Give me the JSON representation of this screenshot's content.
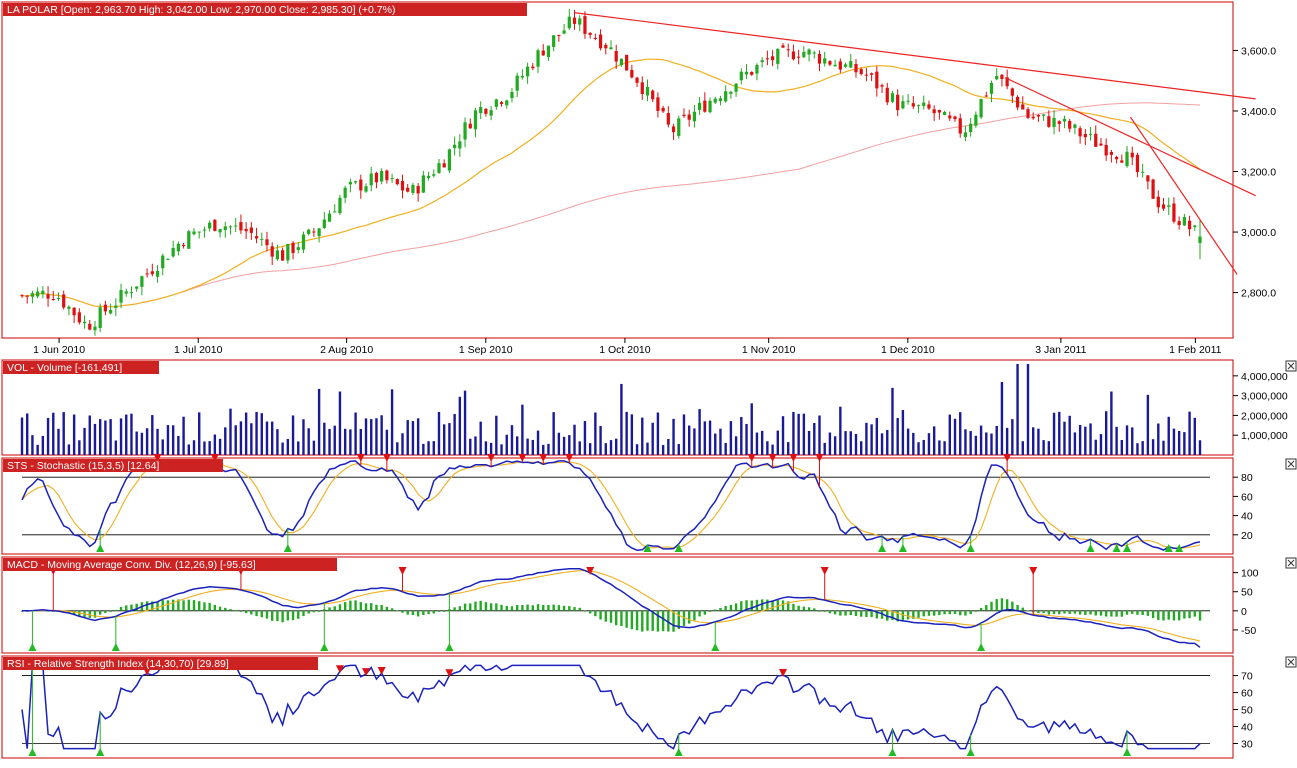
{
  "colors": {
    "frame": "#cc0000",
    "label_bg": "#cc2222",
    "up": "#22aa22",
    "down": "#dd1111",
    "ma_short": "#f0b020",
    "ma_long": "#f2a0a0",
    "trend": "#ee2222",
    "volume": "#1a1a99",
    "indicator": "#1a22bb",
    "signal": "#f0b020",
    "level_line": "#000000",
    "buy_marker": "#22bb22",
    "sell_marker": "#dd1111"
  },
  "price": {
    "label": "LA POLAR [Open: 2,963.70  High: 3,042.00  Low: 2,970.00  Close: 2,985.30] (+0.7%)",
    "y_ticks": [
      "3,600.0",
      "3,400.0",
      "3,200.0",
      "3,000.0",
      "2,800.0"
    ],
    "x_ticks": [
      "1 Jun 2010",
      "1 Jul 2010",
      "2 Aug 2010",
      "1 Sep 2010",
      "1 Oct 2010",
      "1 Nov 2010",
      "1 Dec 2010",
      "3 Jan 2011",
      "1 Feb 2011"
    ]
  },
  "volume": {
    "label": "VOL - Volume [-161,491]",
    "y_ticks": [
      "4,000,000",
      "3,000,000",
      "2,000,000",
      "1,000,000"
    ]
  },
  "stochastic": {
    "label": "STS - Stochastic (15,3,5) [12.64]",
    "y_ticks": [
      "80",
      "60",
      "40",
      "20"
    ]
  },
  "macd": {
    "label": "MACD - Moving Average Conv. Div. (12,26,9) [-95.63]",
    "y_ticks": [
      "100",
      "50",
      "0",
      "-50"
    ]
  },
  "rsi": {
    "label": "RSI - Relative Strength Index (14,30,70) [29.89]",
    "y_ticks": [
      "70",
      "60",
      "50",
      "40",
      "30"
    ]
  },
  "chart_data": [
    {
      "type": "candlestick",
      "series_name": "LA POLAR",
      "x_start": "2010-05-24",
      "x_end": "2011-02-02",
      "ylim": [
        2650,
        3760
      ],
      "close_points": [
        [
          "2010-05-24",
          2790
        ],
        [
          "2010-05-31",
          2800
        ],
        [
          "2010-06-07",
          2690
        ],
        [
          "2010-06-14",
          2780
        ],
        [
          "2010-06-21",
          2880
        ],
        [
          "2010-06-28",
          2980
        ],
        [
          "2010-07-05",
          3030
        ],
        [
          "2010-07-12",
          3000
        ],
        [
          "2010-07-19",
          2920
        ],
        [
          "2010-07-26",
          3000
        ],
        [
          "2010-08-02",
          3140
        ],
        [
          "2010-08-09",
          3180
        ],
        [
          "2010-08-16",
          3130
        ],
        [
          "2010-08-23",
          3240
        ],
        [
          "2010-08-30",
          3400
        ],
        [
          "2010-09-06",
          3460
        ],
        [
          "2010-09-13",
          3600
        ],
        [
          "2010-09-20",
          3700
        ],
        [
          "2010-09-27",
          3620
        ],
        [
          "2010-10-04",
          3500
        ],
        [
          "2010-10-11",
          3330
        ],
        [
          "2010-10-18",
          3420
        ],
        [
          "2010-10-25",
          3500
        ],
        [
          "2010-11-01",
          3570
        ],
        [
          "2010-11-08",
          3600
        ],
        [
          "2010-11-15",
          3560
        ],
        [
          "2010-11-22",
          3520
        ],
        [
          "2010-11-29",
          3420
        ],
        [
          "2010-12-06",
          3400
        ],
        [
          "2010-12-13",
          3330
        ],
        [
          "2010-12-20",
          3520
        ],
        [
          "2010-12-27",
          3380
        ],
        [
          "2011-01-03",
          3360
        ],
        [
          "2011-01-10",
          3300
        ],
        [
          "2011-01-17",
          3250
        ],
        [
          "2011-01-24",
          3100
        ],
        [
          "2011-02-02",
          2985
        ]
      ],
      "last_bar": {
        "open": 2963.7,
        "high": 3042.0,
        "low": 2970.0,
        "close": 2985.3,
        "change_pct": 0.7
      }
    },
    {
      "type": "bar",
      "series_name": "Volume",
      "ylim": [
        0,
        4800000
      ],
      "approx_range": [
        300000,
        4700000
      ]
    },
    {
      "type": "line",
      "series_name": "Stochastic (15,3,5)",
      "ylim": [
        0,
        100
      ],
      "levels": [
        20,
        80
      ],
      "last_value": 12.64
    },
    {
      "type": "line",
      "series_name": "MACD (12,26,9)",
      "ylim": [
        -100,
        120
      ],
      "levels": [
        0
      ],
      "last_value": -95.63
    },
    {
      "type": "line",
      "series_name": "RSI (14,30,70)",
      "ylim": [
        25,
        78
      ],
      "levels": [
        30,
        70
      ],
      "last_value": 29.89
    }
  ]
}
